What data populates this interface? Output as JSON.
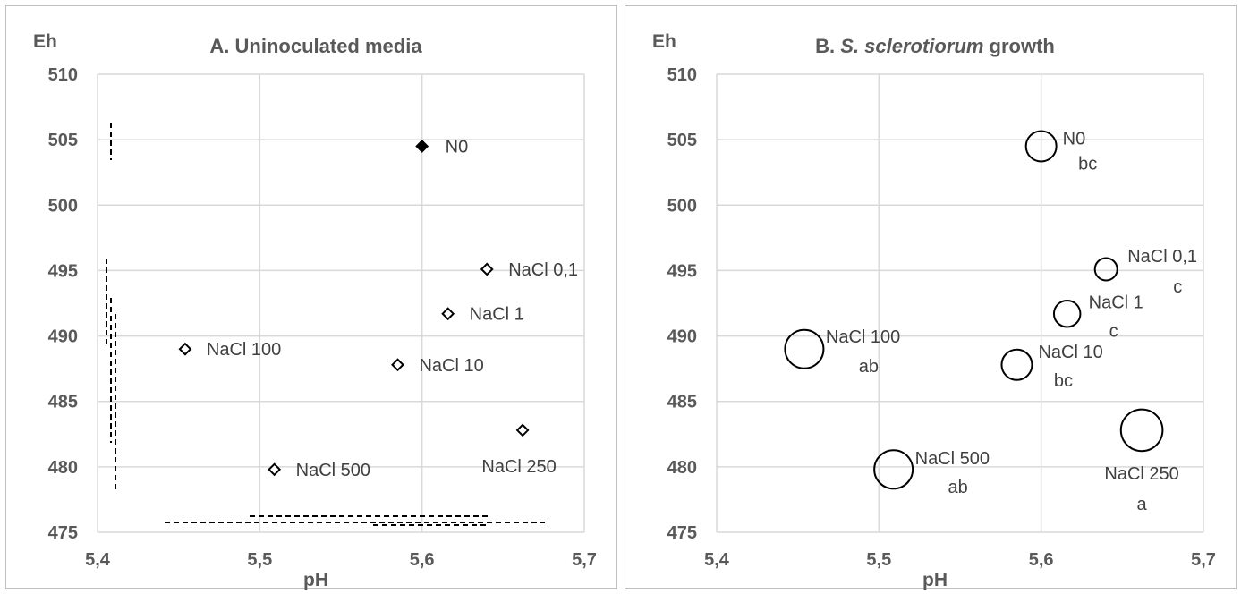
{
  "chart_data": [
    {
      "type": "scatter",
      "title": "A. Uninoculated media",
      "xlabel": "pH",
      "ylabel": "Eh",
      "xlim": [
        5.4,
        5.7
      ],
      "ylim": [
        475,
        510
      ],
      "x_ticks": [
        "5,4",
        "5,5",
        "5,6",
        "5,7"
      ],
      "y_ticks": [
        "475",
        "480",
        "485",
        "490",
        "495",
        "500",
        "505",
        "510"
      ],
      "grid": true,
      "points": [
        {
          "label": "N0",
          "x": 5.6,
          "y": 504.5,
          "filled": true
        },
        {
          "label": "NaCl 0,1",
          "x": 5.64,
          "y": 495.1,
          "filled": false
        },
        {
          "label": "NaCl 1",
          "x": 5.616,
          "y": 491.7,
          "filled": false
        },
        {
          "label": "NaCl 10",
          "x": 5.585,
          "y": 487.8,
          "filled": false
        },
        {
          "label": "NaCl 100",
          "x": 5.454,
          "y": 489.0,
          "filled": false
        },
        {
          "label": "NaCl 250",
          "x": 5.662,
          "y": 482.8,
          "filled": false
        },
        {
          "label": "NaCl 500",
          "x": 5.509,
          "y": 479.8,
          "filled": false
        }
      ]
    },
    {
      "type": "scatter",
      "title": "B. S. sclerotiorum growth",
      "title_plain": "B.",
      "title_italic": "S. sclerotiorum",
      "title_rest": "growth",
      "xlabel": "pH",
      "ylabel": "Eh",
      "xlim": [
        5.4,
        5.7
      ],
      "ylim": [
        475,
        510
      ],
      "x_ticks": [
        "5,4",
        "5,5",
        "5,6",
        "5,7"
      ],
      "y_ticks": [
        "475",
        "480",
        "485",
        "490",
        "495",
        "500",
        "505",
        "510"
      ],
      "grid": true,
      "points": [
        {
          "label": "N0",
          "group": "bc",
          "x": 5.6,
          "y": 504.5,
          "size": 2
        },
        {
          "label": "NaCl 0,1",
          "group": "c",
          "x": 5.64,
          "y": 495.1,
          "size": 1
        },
        {
          "label": "NaCl 1",
          "group": "c",
          "x": 5.616,
          "y": 491.7,
          "size": 1.5
        },
        {
          "label": "NaCl 10",
          "group": "bc",
          "x": 5.585,
          "y": 487.8,
          "size": 2
        },
        {
          "label": "NaCl 100",
          "group": "ab",
          "x": 5.454,
          "y": 489.0,
          "size": 3
        },
        {
          "label": "NaCl 250",
          "group": "a",
          "x": 5.662,
          "y": 482.8,
          "size": 3.4
        },
        {
          "label": "NaCl 500",
          "group": "ab",
          "x": 5.509,
          "y": 479.8,
          "size": 3
        }
      ]
    }
  ]
}
